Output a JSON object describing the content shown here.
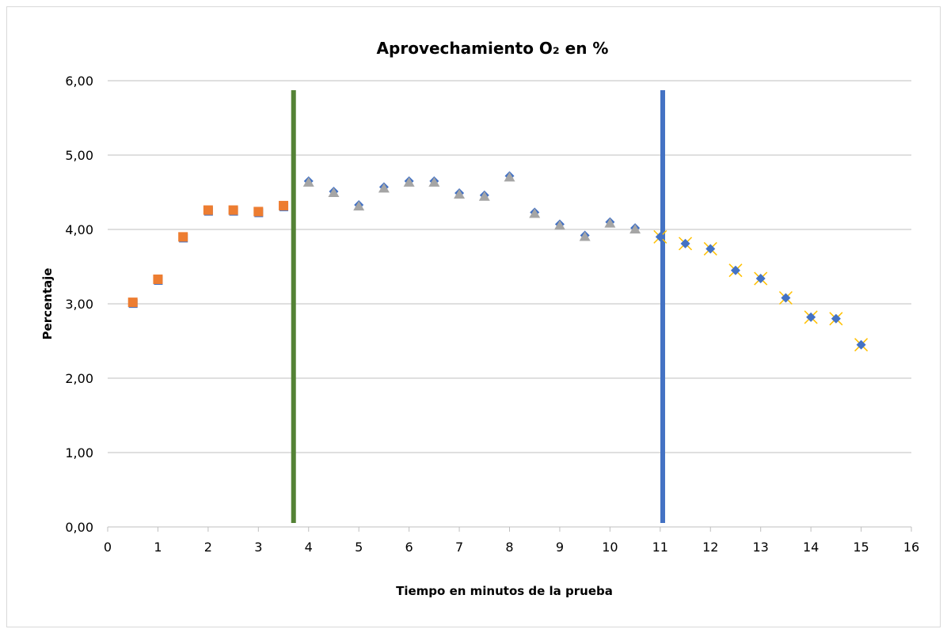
{
  "chart_data": {
    "type": "scatter",
    "title": "Aprovechamiento O₂ en %",
    "xlabel": "Tiempo en minutos de la prueba",
    "ylabel": "Percentaje",
    "xlim": [
      0,
      16
    ],
    "ylim": [
      0,
      6
    ],
    "x_ticks": [
      "0",
      "1",
      "2",
      "3",
      "4",
      "5",
      "6",
      "7",
      "8",
      "9",
      "10",
      "11",
      "12",
      "13",
      "14",
      "15",
      "16"
    ],
    "y_ticks": [
      "0,00",
      "1,00",
      "2,00",
      "3,00",
      "4,00",
      "5,00",
      "6,00"
    ],
    "grid": "horizontal",
    "legend": "none",
    "series": [
      {
        "marker": "square",
        "color": "#ED7D31",
        "x": [
          0.5,
          1.0,
          1.5,
          2.0,
          2.5,
          3.0,
          3.5
        ],
        "y": [
          3.02,
          3.33,
          3.9,
          4.26,
          4.26,
          4.24,
          4.32
        ]
      },
      {
        "marker": "triangle",
        "color": "#A5A5A5",
        "x": [
          4.0,
          4.5,
          5.0,
          5.5,
          6.0,
          6.5,
          7.0,
          7.5,
          8.0,
          8.5,
          9.0,
          9.5,
          10.0,
          10.5
        ],
        "y": [
          4.65,
          4.51,
          4.33,
          4.57,
          4.65,
          4.65,
          4.49,
          4.46,
          4.72,
          4.23,
          4.07,
          3.92,
          4.1,
          4.02
        ]
      },
      {
        "marker": "x-diamond",
        "color": "#FFC000",
        "x": [
          11.0,
          11.5,
          12.0,
          12.5,
          13.0,
          13.5,
          14.0,
          14.5,
          15.0
        ],
        "y": [
          3.9,
          3.81,
          3.74,
          3.45,
          3.34,
          3.08,
          2.82,
          2.8,
          2.45
        ]
      }
    ],
    "vertical_lines": [
      {
        "x": 3.7,
        "color": "#548235"
      },
      {
        "x": 11.05,
        "color": "#4472C4"
      }
    ],
    "marker_underlay_color": "#4472C4",
    "grid_color": "#BFBFBF",
    "axis_color": "#BFBFBF"
  }
}
